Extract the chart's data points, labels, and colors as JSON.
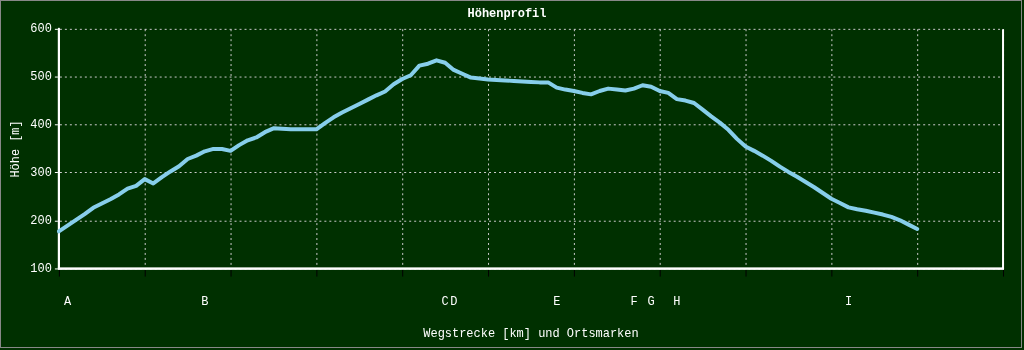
{
  "chart_data": {
    "type": "line",
    "title": "Höhenprofil",
    "xlabel": "Wegstrecke [km] und Ortsmarken",
    "ylabel": "Höhe [m]",
    "categories": [
      null,
      "A",
      null,
      null,
      null,
      null,
      null,
      null,
      null,
      null,
      null,
      null,
      null,
      null,
      null,
      null,
      null,
      "B",
      null,
      null,
      null,
      null,
      null,
      null,
      null,
      null,
      null,
      null,
      null,
      null,
      null,
      null,
      null,
      null,
      null,
      null,
      null,
      null,
      null,
      null,
      null,
      null,
      null,
      null,
      null,
      "C",
      "D",
      null,
      null,
      null,
      null,
      null,
      null,
      null,
      null,
      null,
      null,
      null,
      "E",
      null,
      null,
      null,
      null,
      null,
      null,
      null,
      null,
      "F",
      null,
      "G",
      null,
      null,
      "H",
      null,
      null,
      null,
      null,
      null,
      null,
      null,
      null,
      null,
      null,
      null,
      null,
      null,
      null,
      null,
      null,
      null,
      null,
      null,
      "I",
      null,
      null,
      null,
      null,
      null,
      null,
      null,
      null,
      null,
      null,
      null,
      null,
      null,
      null,
      null,
      null,
      null,
      null
    ],
    "series": [
      {
        "color": "#87ceeb",
        "values": [
          178,
          190,
          202,
          214,
          227,
          236,
          245,
          255,
          267,
          273,
          287,
          278,
          291,
          303,
          314,
          329,
          336,
          345,
          350,
          350,
          346,
          358,
          368,
          374,
          385,
          393,
          392,
          391,
          391,
          391,
          391,
          404,
          416,
          426,
          435,
          444,
          453,
          462,
          470,
          485,
          496,
          504,
          524,
          528,
          535,
          530,
          515,
          507,
          499,
          497,
          495,
          494,
          493,
          492,
          491,
          490,
          489,
          489,
          478,
          474,
          471,
          467,
          464,
          471,
          476,
          474,
          472,
          476,
          483,
          480,
          471,
          467,
          454,
          451,
          446,
          432,
          418,
          405,
          390,
          371,
          355,
          346,
          336,
          325,
          313,
          302,
          292,
          281,
          270,
          258,
          246,
          237,
          228,
          224,
          221,
          217,
          213,
          208,
          201,
          192,
          183,
          null,
          null,
          null,
          null,
          null,
          null,
          null,
          null,
          null,
          null
        ]
      }
    ],
    "ylim": [
      100,
      600
    ],
    "yticks": [
      100,
      200,
      300,
      400,
      500,
      600
    ],
    "grid": true
  }
}
